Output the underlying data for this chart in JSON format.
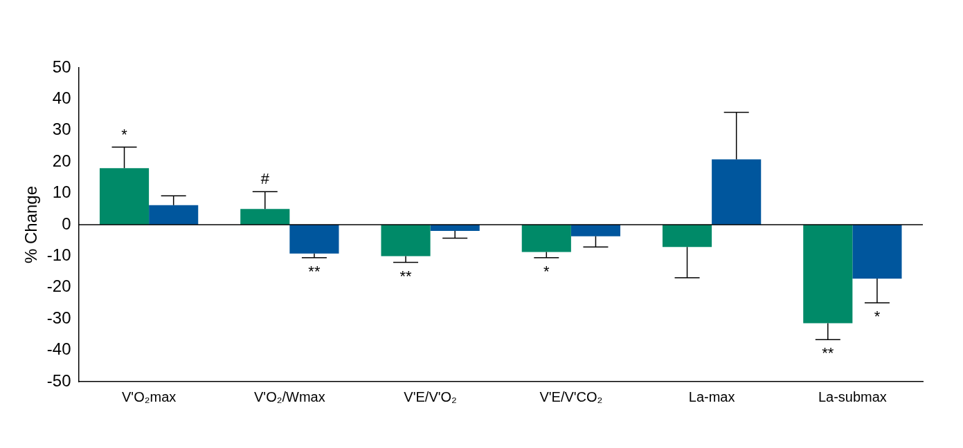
{
  "chart_data": {
    "type": "bar",
    "ylabel": "% Change",
    "categories": [
      "V'O₂max",
      "V'O₂/Wmax",
      "V'E/V'O₂",
      "V'E/V'CO₂",
      "La-max",
      "La-submax"
    ],
    "series": [
      {
        "color": "#008a68",
        "values": [
          18,
          5,
          -10,
          -8.7,
          -7.1,
          -31.4
        ],
        "errors": [
          [
            18,
            24.7
          ],
          [
            5,
            10.5
          ],
          [
            -12,
            -10
          ],
          [
            -10.5,
            -8.7
          ],
          [
            -16.9,
            -7.1
          ],
          [
            -36.6,
            -31.4
          ]
        ]
      },
      {
        "color": "#00569d",
        "values": [
          6.2,
          -9.2,
          -2,
          -3.7,
          20.8,
          -17.2
        ],
        "errors": [
          [
            6.2,
            9.2
          ],
          [
            -10.5,
            -9.2
          ],
          [
            -4.3,
            -2
          ],
          [
            -7.1,
            -3.7
          ],
          [
            20.8,
            35.8
          ],
          [
            -24.9,
            -17.2
          ]
        ]
      }
    ],
    "ref_lines": [
      {
        "axis": "y",
        "value": 0
      }
    ],
    "ylim": [
      -50,
      50
    ],
    "yticks": [
      -50,
      -40,
      -30,
      -20,
      -10,
      0,
      10,
      20,
      30,
      40,
      50
    ],
    "grid": false,
    "legend": false,
    "annotations": [
      {
        "text": "*",
        "x": "V'O₂max",
        "y": 18
      },
      {
        "text": "#",
        "x": "V'O₂/Wmax",
        "y": 5
      },
      {
        "text": "**",
        "x": "V'O₂/Wmax",
        "y": -9.2
      },
      {
        "text": "**",
        "x": "V'E/V'O₂",
        "y": -10
      },
      {
        "text": "*",
        "x": "V'E/V'CO₂",
        "y": -8.7
      },
      {
        "text": "**",
        "x": "La-submax",
        "y": -31.4
      },
      {
        "text": "*",
        "x": "La-submax",
        "y": -17.2
      }
    ]
  }
}
